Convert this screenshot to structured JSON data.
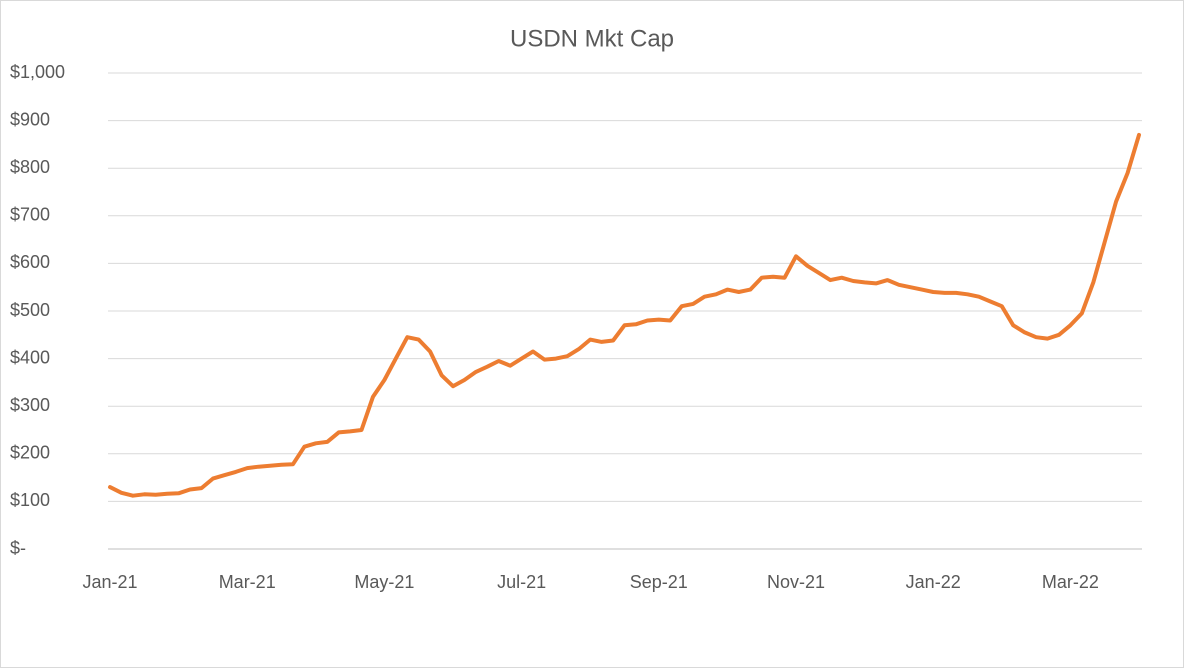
{
  "chart_data": {
    "type": "line",
    "title": "USDN Mkt Cap",
    "categories": [
      "Jan-21",
      null,
      null,
      null,
      null,
      null,
      null,
      null,
      null,
      null,
      null,
      null,
      "Mar-21",
      null,
      null,
      null,
      null,
      null,
      null,
      null,
      null,
      null,
      null,
      null,
      "May-21",
      null,
      null,
      null,
      null,
      null,
      null,
      null,
      null,
      null,
      null,
      null,
      "Jul-21",
      null,
      null,
      null,
      null,
      null,
      null,
      null,
      null,
      null,
      null,
      null,
      "Sep-21",
      null,
      null,
      null,
      null,
      null,
      null,
      null,
      null,
      null,
      null,
      null,
      "Nov-21",
      null,
      null,
      null,
      null,
      null,
      null,
      null,
      null,
      null,
      null,
      null,
      "Jan-22",
      null,
      null,
      null,
      null,
      null,
      null,
      null,
      null,
      null,
      null,
      null,
      "Mar-22",
      null,
      null,
      null,
      null,
      null,
      null
    ],
    "series": [
      {
        "name": "USDN Mkt Cap",
        "color": "#ED7D31",
        "values": [
          130,
          118,
          112,
          115,
          114,
          116,
          117,
          125,
          128,
          148,
          155,
          162,
          170,
          173,
          175,
          177,
          178,
          215,
          222,
          225,
          245,
          247,
          250,
          320,
          355,
          400,
          445,
          440,
          415,
          365,
          342,
          355,
          372,
          383,
          395,
          385,
          400,
          415,
          398,
          400,
          405,
          420,
          440,
          435,
          438,
          470,
          472,
          480,
          482,
          480,
          510,
          515,
          530,
          535,
          545,
          540,
          545,
          570,
          572,
          570,
          615,
          595,
          580,
          565,
          570,
          563,
          560,
          558,
          565,
          555,
          550,
          545,
          540,
          538,
          538,
          535,
          530,
          520,
          510,
          470,
          455,
          445,
          442,
          450,
          470,
          495,
          560,
          645,
          730,
          790,
          870
        ]
      }
    ],
    "ylim": [
      0,
      1000
    ],
    "yticks": [
      {
        "value": 0,
        "label": "$-"
      },
      {
        "value": 100,
        "label": "$100"
      },
      {
        "value": 200,
        "label": "$200"
      },
      {
        "value": 300,
        "label": "$300"
      },
      {
        "value": 400,
        "label": "$400"
      },
      {
        "value": 500,
        "label": "$500"
      },
      {
        "value": 600,
        "label": "$600"
      },
      {
        "value": 700,
        "label": "$700"
      },
      {
        "value": 800,
        "label": "$800"
      },
      {
        "value": 900,
        "label": "$900"
      },
      {
        "value": 1000,
        "label": "$1,000"
      }
    ],
    "grid": true
  }
}
